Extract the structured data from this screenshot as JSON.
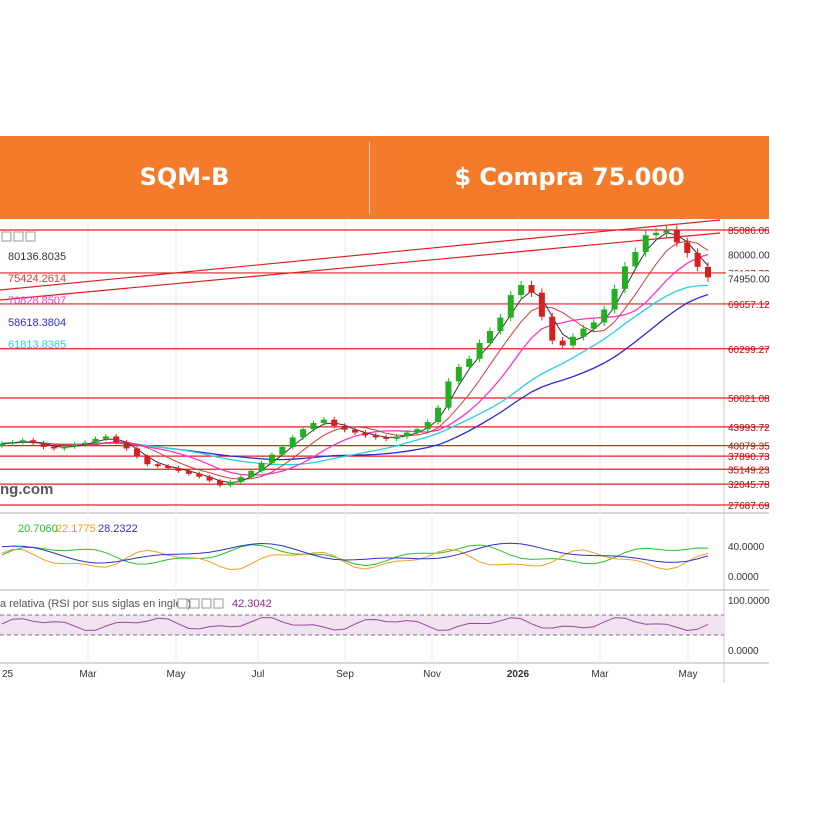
{
  "banner": {
    "ticker": "SQM-B",
    "recommendation": "$ Compra 75.000",
    "background_color": "#f47b2a"
  },
  "chart_data": {
    "type": "candlestick",
    "x_ticks": [
      "25",
      "Mar",
      "May",
      "Jul",
      "Sep",
      "Nov",
      "2026",
      "Mar",
      "May"
    ],
    "main_panel": {
      "y_ticks": [
        85086.06,
        80000.0,
        76127.72,
        74950.0,
        69657.12,
        60299.27,
        50021.08,
        43993.72,
        40079.35,
        37890.73,
        35149.23,
        32045.78,
        27687.69
      ],
      "horizontal_levels": [
        85086.06,
        76127.72,
        69657.12,
        60299.27,
        50021.08,
        43993.72,
        40079.35,
        37890.73,
        35149.23,
        32045.78,
        27687.69
      ],
      "highlighted_tick": 74950.0,
      "moving_averages": [
        {
          "label": "80136.8035",
          "color": "#333333"
        },
        {
          "label": "75424.2614",
          "color": "#d9393a"
        },
        {
          "label": "70828.8507",
          "color": "#ff33cc"
        },
        {
          "label": "58618.3804",
          "color": "#2a2ad8"
        },
        {
          "label": "61813.8365",
          "color": "#22d3e0"
        }
      ],
      "watermark": "ng.com",
      "closes": [
        40500,
        40800,
        41200,
        40600,
        39800,
        39500,
        39900,
        40300,
        40700,
        41500,
        42000,
        40800,
        39500,
        37800,
        36200,
        35800,
        35400,
        34800,
        34200,
        33600,
        32800,
        31800,
        32500,
        33500,
        34800,
        36500,
        38200,
        39800,
        41800,
        43500,
        44800,
        45500,
        44200,
        43400,
        42800,
        42200,
        41800,
        41500,
        42000,
        42800,
        43500,
        45000,
        48000,
        53500,
        56500,
        58200,
        61500,
        64000,
        66800,
        71500,
        73600,
        72000,
        67000,
        62000,
        61000,
        62800,
        64500,
        65800,
        68500,
        72800,
        77500,
        80500,
        84000,
        84500,
        85000,
        82500,
        80300,
        77400,
        75200
      ]
    },
    "adx_panel": {
      "values": [
        20.706,
        22.1775,
        28.2322
      ],
      "colors": [
        "#27c227",
        "#f0a020",
        "#3030c8"
      ],
      "y_ticks": [
        40.0,
        0.0
      ]
    },
    "rsi_panel": {
      "label": "a relativa (RSI por sus siglas en inglés)",
      "value": 42.3042,
      "y_ticks": [
        100.0,
        0.0
      ]
    }
  }
}
